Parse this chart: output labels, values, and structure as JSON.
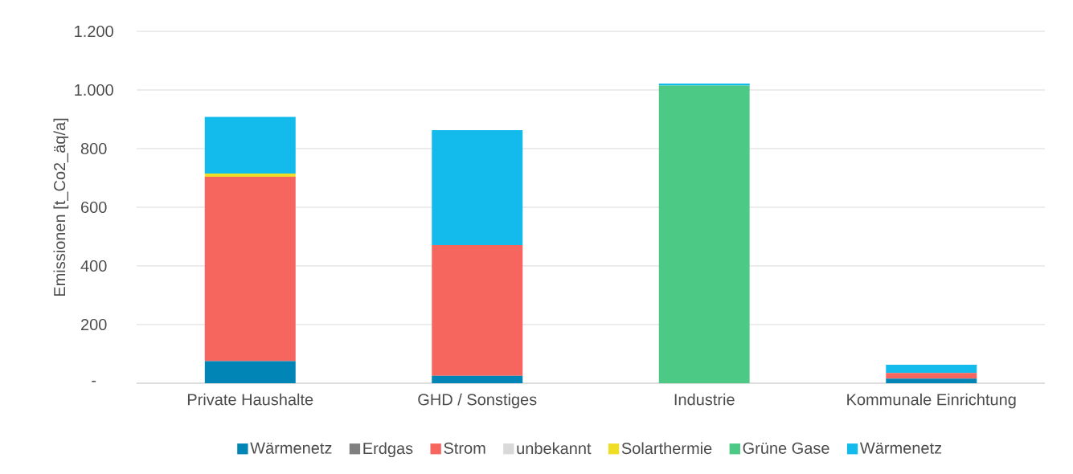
{
  "chart_data": {
    "type": "bar",
    "stacked": true,
    "ylabel": "Emissionen [t_Co2_äq/a]",
    "categories": [
      "Private Haushalte",
      "GHD / Sonstiges",
      "Industrie",
      "Kommunale Einrichtung"
    ],
    "series": [
      {
        "name": "Wärmenetz",
        "color": "#0085b6",
        "values": [
          75,
          25,
          0,
          16
        ]
      },
      {
        "name": "Erdgas",
        "color": "#808080",
        "values": [
          0,
          0,
          0,
          0
        ]
      },
      {
        "name": "Strom",
        "color": "#f6655e",
        "values": [
          629,
          446,
          0,
          19
        ]
      },
      {
        "name": "unbekannt",
        "color": "#d9d9d9",
        "values": [
          0,
          0,
          0,
          0
        ]
      },
      {
        "name": "Solarthermie",
        "color": "#f0de26",
        "values": [
          11,
          0,
          0,
          0
        ]
      },
      {
        "name": "Grüne Gase",
        "color": "#4cc985",
        "values": [
          0,
          0,
          1015,
          0
        ]
      },
      {
        "name": "Wärmenetz",
        "color": "#13bbec",
        "values": [
          193,
          392,
          7,
          28
        ]
      }
    ],
    "ylim": [
      0,
      1200
    ],
    "yticks": [
      {
        "value": 0,
        "label": "-"
      },
      200,
      400,
      600,
      800,
      {
        "value": 1000,
        "label": "1.000"
      },
      {
        "value": 1200,
        "label": "1.200"
      }
    ],
    "grid": "y",
    "legend": "bottom"
  }
}
